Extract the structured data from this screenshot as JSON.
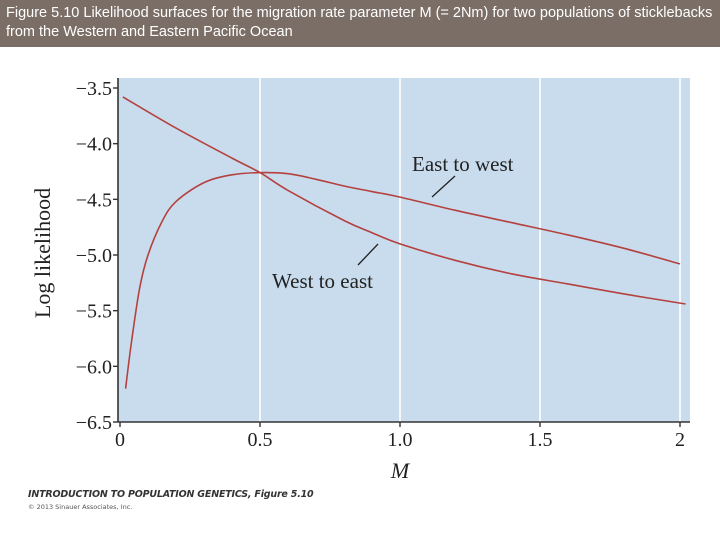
{
  "caption": "Figure 5.10  Likelihood surfaces for the migration rate parameter M (= 2Nm) for two populations of sticklebacks from the Western and Eastern Pacific Ocean",
  "credit": "INTRODUCTION TO POPULATION GENETICS, Figure 5.10",
  "copyright": "© 2013 Sinauer Associates, Inc.",
  "colors": {
    "background": "#c8dced",
    "curve": "#b5413e",
    "grid": "#ffffff",
    "header": "#7b6e66"
  },
  "chart_data": {
    "type": "line",
    "title": "",
    "xlabel": "M",
    "ylabel": "Log likelihood",
    "xlim": [
      0,
      2.02
    ],
    "ylim": [
      -6.5,
      -3.5
    ],
    "xticks": [
      0,
      0.5,
      1.0,
      1.5,
      2
    ],
    "xtick_labels": [
      "0",
      "0.5",
      "1.0",
      "1.5",
      "2"
    ],
    "yticks": [
      -3.5,
      -4.0,
      -4.5,
      -5.0,
      -5.5,
      -6.0,
      -6.5
    ],
    "ytick_labels": [
      "−3.5",
      "−4.0",
      "−4.5",
      "−5.0",
      "−5.5",
      "−6.0",
      "−6.5"
    ],
    "grid": true,
    "annotations": [
      "East to west",
      "West to east"
    ],
    "series": [
      {
        "name": "East to west",
        "x": [
          0.02,
          0.04,
          0.07,
          0.1,
          0.15,
          0.2,
          0.3,
          0.4,
          0.5,
          0.6,
          0.7,
          0.8,
          0.9,
          1.0,
          1.2,
          1.4,
          1.6,
          1.8,
          2.0
        ],
        "y": [
          -6.2,
          -5.8,
          -5.3,
          -5.0,
          -4.7,
          -4.52,
          -4.35,
          -4.28,
          -4.26,
          -4.27,
          -4.32,
          -4.38,
          -4.43,
          -4.48,
          -4.6,
          -4.71,
          -4.82,
          -4.94,
          -5.08
        ]
      },
      {
        "name": "West to east",
        "x": [
          0.01,
          0.2,
          0.4,
          0.5,
          0.6,
          0.8,
          0.9,
          1.0,
          1.2,
          1.4,
          1.6,
          1.8,
          2.02
        ],
        "y": [
          -3.58,
          -3.86,
          -4.13,
          -4.26,
          -4.42,
          -4.69,
          -4.8,
          -4.9,
          -5.05,
          -5.17,
          -5.26,
          -5.35,
          -5.44
        ]
      }
    ]
  }
}
